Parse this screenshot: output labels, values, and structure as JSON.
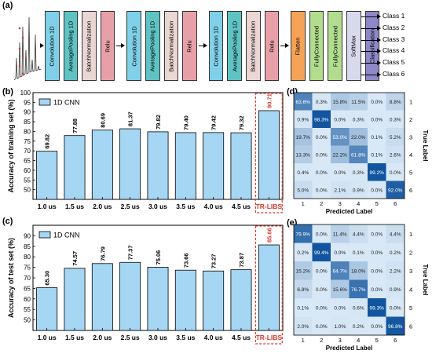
{
  "panels": {
    "a": "(a)",
    "b": "(b)",
    "c": "(c)",
    "d": "(d)",
    "e": "(e)"
  },
  "architecture": {
    "blocks": [
      {
        "label": "Convolution 1D",
        "color": "#7fd0e8"
      },
      {
        "label": "AveragePooling 1D",
        "color": "#5fc3c3"
      },
      {
        "label": "BatchNormalization",
        "color": "#ead6d3"
      },
      {
        "label": "Relu",
        "color": "#e8a0a8"
      },
      {
        "label": "Convolution 1D",
        "color": "#7fd0e8"
      },
      {
        "label": "AveragePooling 1D",
        "color": "#5fc3c3"
      },
      {
        "label": "BatchNormalization",
        "color": "#ead6d3"
      },
      {
        "label": "Relu",
        "color": "#e8a0a8"
      },
      {
        "label": "Convolution 1D",
        "color": "#7fd0e8"
      },
      {
        "label": "AveragePooling 1D",
        "color": "#5fc3c3"
      },
      {
        "label": "BatchNormalization",
        "color": "#ead6d3"
      },
      {
        "label": "Relu",
        "color": "#e8a0a8"
      },
      {
        "label": "Flatten",
        "color": "#f6a257"
      },
      {
        "label": "FullyConnected",
        "color": "#b2dd8f"
      },
      {
        "label": "FullyConnected",
        "color": "#b2dd8f"
      },
      {
        "label": "SoftMax",
        "color": "#d9d9ee"
      },
      {
        "label": "Classification",
        "color": "#8e88c8"
      }
    ],
    "classes": [
      "Class 1",
      "Class 2",
      "Class 3",
      "Class 4",
      "Class 5",
      "Class 6"
    ]
  },
  "chart_data": [
    {
      "type": "bar",
      "panel": "b",
      "ylabel": "Accuracy of training set (%)",
      "legend": "1D CNN",
      "categories": [
        "1.0 us",
        "1.5 us",
        "2.0 us",
        "2.5 us",
        "3.0 us",
        "3.5 us",
        "4.0 us",
        "4.5 us",
        "TR-LIBS"
      ],
      "values": [
        69.82,
        77.88,
        80.69,
        81.37,
        79.82,
        79.4,
        79.42,
        79.32,
        90.71
      ],
      "value_labels": [
        "69.82",
        "77.88",
        "80.69",
        "81.37",
        "79.82",
        "79.40",
        "79.42",
        "79.32",
        "90.71"
      ],
      "ylim": [
        45,
        100
      ],
      "yticks": [
        "50",
        "55",
        "60",
        "65",
        "70",
        "75",
        "80",
        "85",
        "90",
        "95",
        "100"
      ],
      "bar_color": "#a5d6f4",
      "highlight_color": "#d43a2f"
    },
    {
      "type": "bar",
      "panel": "c",
      "ylabel": "Accuracy of test set (%)",
      "legend": "1D CNN",
      "categories": [
        "1.0 us",
        "1.5 us",
        "2.0 us",
        "2.5 us",
        "3.0 us",
        "3.5 us",
        "4.0 us",
        "4.5 us",
        "TR-LIBS"
      ],
      "values": [
        65.3,
        74.57,
        76.79,
        77.37,
        75.06,
        73.66,
        73.27,
        73.87,
        85.66
      ],
      "value_labels": [
        "65.30",
        "74.57",
        "76.79",
        "77.37",
        "75.06",
        "73.66",
        "73.27",
        "73.87",
        "85.66"
      ],
      "ylim": [
        45,
        95
      ],
      "yticks": [
        "50",
        "55",
        "60",
        "65",
        "70",
        "75",
        "80",
        "85",
        "90"
      ],
      "bar_color": "#a5d6f4",
      "highlight_color": "#d43a2f"
    },
    {
      "type": "heatmap",
      "panel": "d",
      "xlabel": "Predicted Label",
      "ylabel": "True Label",
      "labels": [
        "1",
        "2",
        "3",
        "4",
        "5",
        "6"
      ],
      "cells": [
        [
          "63.6%",
          "0.3%",
          "15.8%",
          "11.5%",
          "0.0%",
          "8.8%"
        ],
        [
          "0.9%",
          "98.3%",
          "0.0%",
          "0.3%",
          "0.0%",
          "0.3%"
        ],
        [
          "19.7%",
          "0.0%",
          "53.0%",
          "22.0%",
          "0.1%",
          "5.2%"
        ],
        [
          "13.3%",
          "0.0%",
          "22.2%",
          "61.8%",
          "0.1%",
          "2.6%"
        ],
        [
          "0.4%",
          "0.0%",
          "0.0%",
          "0.3%",
          "99.2%",
          "0.0%"
        ],
        [
          "5.0%",
          "0.0%",
          "2.1%",
          "0.9%",
          "0.0%",
          "92.0%"
        ]
      ],
      "values": [
        [
          63.6,
          0.3,
          15.8,
          11.5,
          0.0,
          8.8
        ],
        [
          0.9,
          98.3,
          0.0,
          0.3,
          0.0,
          0.3
        ],
        [
          19.7,
          0.0,
          53.0,
          22.0,
          0.1,
          5.2
        ],
        [
          13.3,
          0.0,
          22.2,
          61.8,
          0.1,
          2.6
        ],
        [
          0.4,
          0.0,
          0.0,
          0.3,
          99.2,
          0.0
        ],
        [
          5.0,
          0.0,
          2.1,
          0.9,
          0.0,
          92.0
        ]
      ]
    },
    {
      "type": "heatmap",
      "panel": "e",
      "xlabel": "Predicted Label",
      "ylabel": "True Label",
      "labels": [
        "1",
        "2",
        "3",
        "4",
        "5",
        "6"
      ],
      "cells": [
        [
          "79.9%",
          "0.0%",
          "11.4%",
          "4.4%",
          "0.0%",
          "4.4%"
        ],
        [
          "0.2%",
          "99.4%",
          "0.0%",
          "0.1%",
          "0.0%",
          "0.2%"
        ],
        [
          "15.2%",
          "0.0%",
          "64.7%",
          "18.0%",
          "0.0%",
          "2.2%"
        ],
        [
          "6.8%",
          "0.0%",
          "15.6%",
          "76.7%",
          "0.0%",
          "0.9%"
        ],
        [
          "0.1%",
          "0.0%",
          "0.0%",
          "0.6%",
          "99.3%",
          "0.0%"
        ],
        [
          "2.0%",
          "0.0%",
          "1.0%",
          "0.2%",
          "0.0%",
          "96.8%"
        ]
      ],
      "values": [
        [
          79.9,
          0.0,
          11.4,
          4.4,
          0.0,
          4.4
        ],
        [
          0.2,
          99.4,
          0.0,
          0.1,
          0.0,
          0.2
        ],
        [
          15.2,
          0.0,
          64.7,
          18.0,
          0.0,
          2.2
        ],
        [
          6.8,
          0.0,
          15.6,
          76.7,
          0.0,
          0.9
        ],
        [
          0.1,
          0.0,
          0.0,
          0.6,
          99.3,
          0.0
        ],
        [
          2.0,
          0.0,
          1.0,
          0.2,
          0.0,
          96.8
        ]
      ]
    }
  ]
}
